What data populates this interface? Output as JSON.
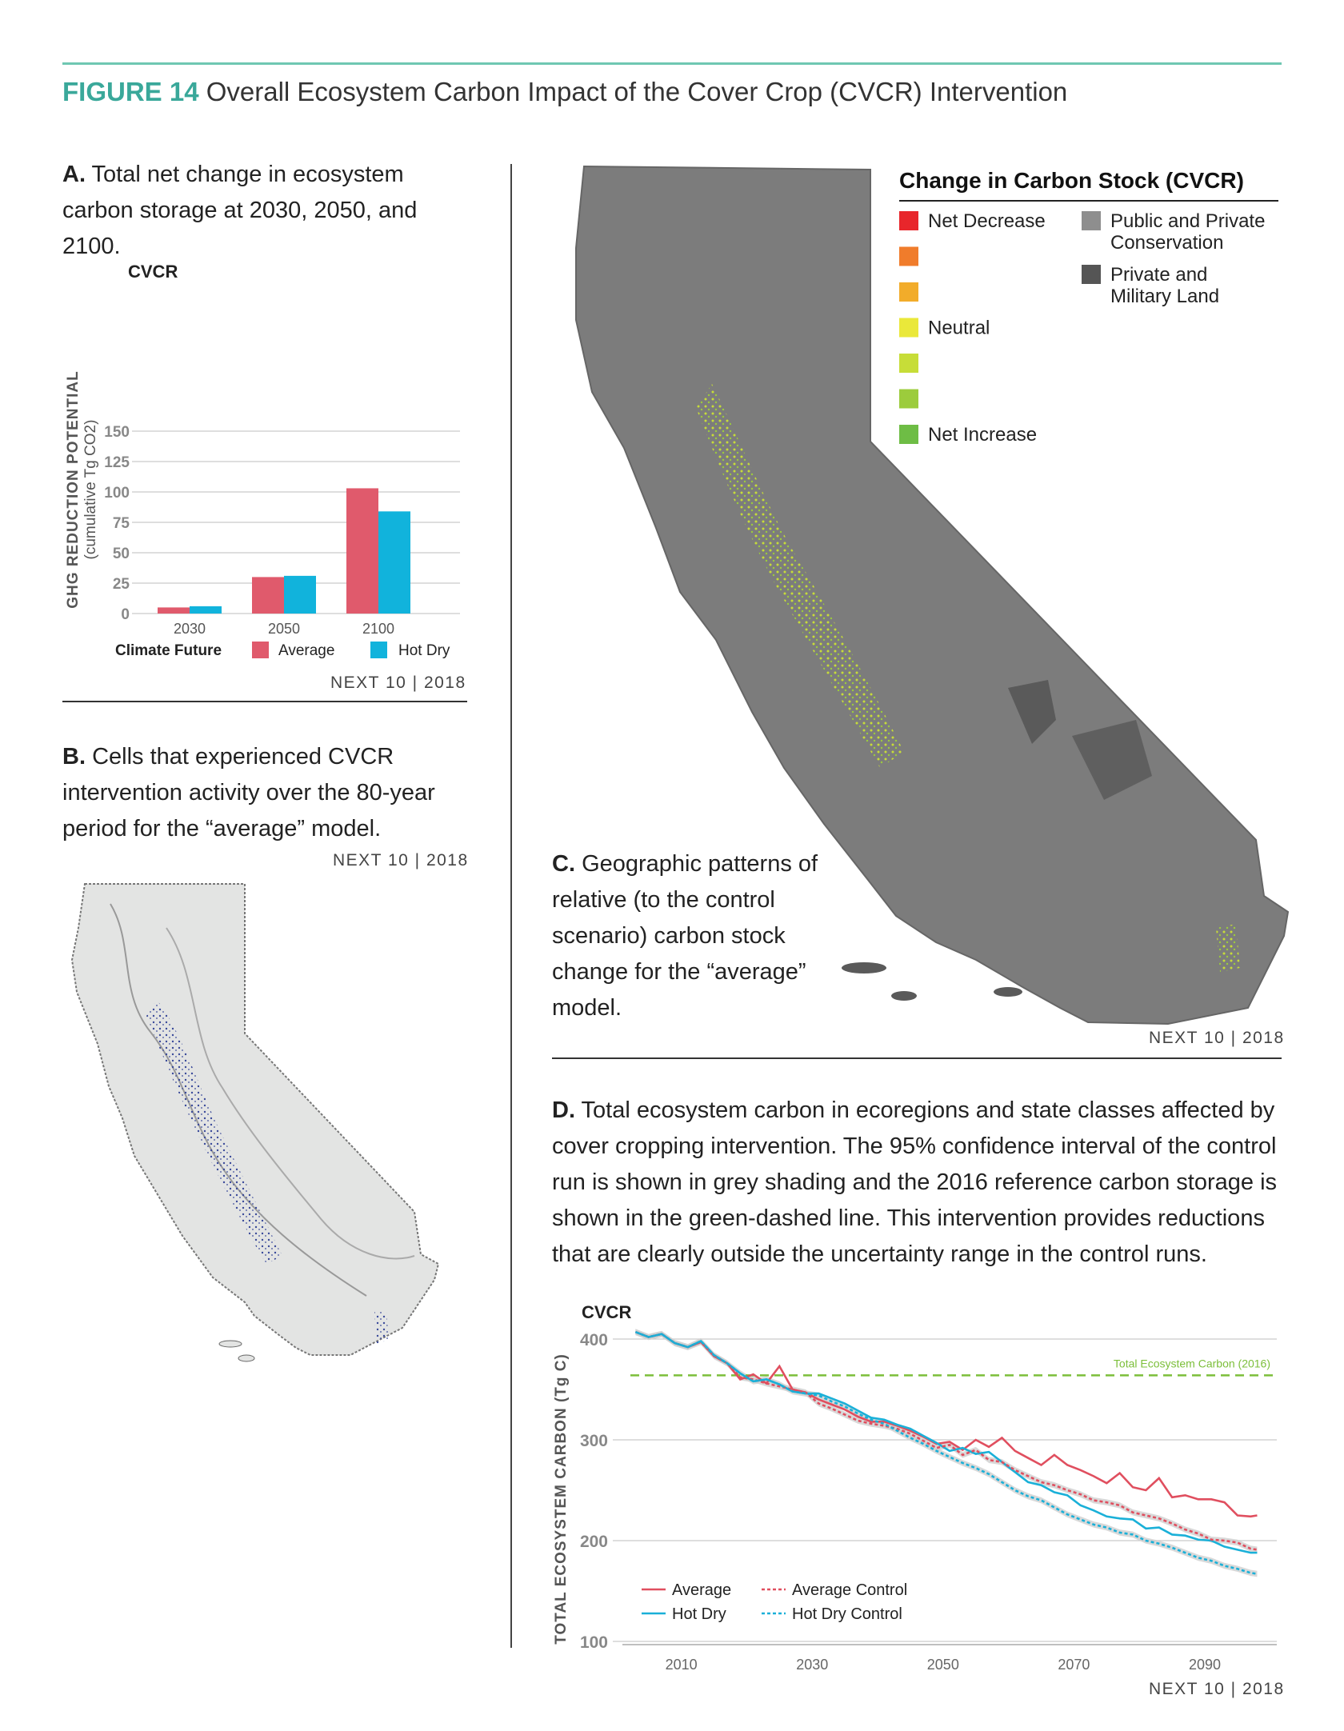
{
  "figure": {
    "number": "FIGURE 14",
    "title": "Overall Ecosystem Carbon Impact of the Cover Crop (CVCR) Intervention"
  },
  "panel_a": {
    "label": "A.",
    "caption": "Total net change in ecosystem carbon storage at 2030, 2050, and 2100.",
    "credit": "NEXT 10 | 2018"
  },
  "panel_b": {
    "label": "B.",
    "caption": "Cells that experienced CVCR intervention activity over the 80-year period for the “average” model.",
    "credit": "NEXT 10 | 2018"
  },
  "panel_c": {
    "label": "C.",
    "caption": "Geographic patterns of relative (to the control scenario) carbon stock change for the “average” model.",
    "credit": "NEXT 10 | 2018",
    "legend": {
      "title": "Change in Carbon Stock (CVCR)",
      "items": [
        {
          "label": "Net Decrease",
          "color": "#e8262b"
        },
        {
          "label": "",
          "color": "#f07c2b"
        },
        {
          "label": "",
          "color": "#f2ac2a"
        },
        {
          "label": "Neutral",
          "color": "#eae83a"
        },
        {
          "label": "",
          "color": "#c7dd38"
        },
        {
          "label": "",
          "color": "#9ccc3c"
        },
        {
          "label": "Net Increase",
          "color": "#6ebd45"
        }
      ],
      "land": [
        {
          "label": "Public and Private Conservation",
          "color": "#8e8e8e"
        },
        {
          "label": "Private and Military Land",
          "color": "#555555"
        }
      ]
    }
  },
  "panel_d": {
    "label": "D.",
    "caption": "Total ecosystem carbon in ecoregions and state classes affected by cover cropping intervention. The 95% confidence interval of the control run is shown in grey shading and the 2016 reference carbon storage is shown in the green-dashed line. This intervention provides reductions that are clearly outside the uncertainty range in the control runs.",
    "credit": "NEXT 10 | 2018"
  },
  "chart_data": [
    {
      "type": "bar",
      "title": "CVCR",
      "ylabel": "GHG REDUCTION POTENTIAL",
      "ylabel_units": "(cumulative Tg CO2)",
      "categories": [
        "2030",
        "2050",
        "2100"
      ],
      "series": [
        {
          "name": "Average",
          "values": [
            5,
            30,
            103
          ],
          "color": "#e05a6c"
        },
        {
          "name": "Hot Dry",
          "values": [
            6,
            31,
            84
          ],
          "color": "#11b3dc"
        }
      ],
      "ylim": [
        0,
        150
      ],
      "yticks": [
        "0",
        "25",
        "50",
        "75",
        "100",
        "125",
        "150"
      ],
      "legend_title": "Climate Future",
      "legend_position": "bottom",
      "grid": true
    },
    {
      "type": "line",
      "title": "CVCR",
      "ylabel": "TOTAL ECOSYSTEM CARBON (Tg C)",
      "xlim": [
        2001,
        2101
      ],
      "ylim": [
        100,
        400
      ],
      "xticks": [
        "2010",
        "2030",
        "2050",
        "2070",
        "2090"
      ],
      "yticks": [
        "100",
        "200",
        "300",
        "400"
      ],
      "reference": {
        "label": "Total Ecosystem Carbon (2016)",
        "value": 364,
        "color": "#7cbf3a"
      },
      "legend_position": "bottom-left",
      "grid": true,
      "x": [
        2003,
        2005,
        2007,
        2009,
        2011,
        2013,
        2015,
        2017,
        2019,
        2021,
        2023,
        2025,
        2027,
        2029,
        2031,
        2033,
        2035,
        2037,
        2039,
        2041,
        2043,
        2045,
        2047,
        2049,
        2051,
        2053,
        2055,
        2057,
        2059,
        2061,
        2063,
        2065,
        2067,
        2069,
        2071,
        2073,
        2075,
        2077,
        2079,
        2081,
        2083,
        2085,
        2087,
        2089,
        2091,
        2093,
        2095,
        2097,
        2098
      ],
      "series": [
        {
          "name": "Average",
          "color": "#e04f5f",
          "style": "solid",
          "values": [
            407,
            402,
            405,
            396,
            392,
            397,
            383,
            376,
            360,
            365,
            356,
            373,
            350,
            347,
            340,
            335,
            330,
            323,
            318,
            318,
            314,
            309,
            303,
            296,
            298,
            290,
            300,
            293,
            302,
            289,
            282,
            275,
            285,
            275,
            270,
            264,
            257,
            267,
            253,
            250,
            262,
            243,
            245,
            241,
            241,
            238,
            225,
            224,
            225
          ]
        },
        {
          "name": "Hot Dry",
          "color": "#1ab0d8",
          "style": "solid",
          "values": [
            407,
            402,
            405,
            396,
            392,
            398,
            384,
            376,
            366,
            358,
            360,
            355,
            348,
            346,
            346,
            341,
            336,
            329,
            322,
            320,
            315,
            311,
            304,
            297,
            289,
            292,
            286,
            288,
            278,
            268,
            258,
            255,
            248,
            245,
            235,
            230,
            224,
            222,
            221,
            212,
            213,
            206,
            205,
            201,
            200,
            194,
            191,
            188,
            188
          ]
        },
        {
          "name": "Average Control",
          "color": "#e04f5f",
          "style": "dashed",
          "values": [
            407,
            402,
            405,
            396,
            392,
            397,
            383,
            376,
            362,
            360,
            356,
            353,
            350,
            347,
            336,
            331,
            325,
            319,
            316,
            314,
            311,
            306,
            299,
            292,
            295,
            285,
            290,
            280,
            278,
            270,
            264,
            258,
            255,
            250,
            246,
            240,
            238,
            235,
            228,
            225,
            222,
            217,
            211,
            207,
            201,
            200,
            198,
            192,
            191
          ]
        },
        {
          "name": "Hot Dry Control",
          "color": "#1ab0d8",
          "style": "dashed",
          "values": [
            407,
            402,
            405,
            396,
            392,
            398,
            384,
            376,
            366,
            358,
            360,
            355,
            348,
            346,
            344,
            338,
            333,
            326,
            320,
            316,
            309,
            302,
            296,
            289,
            283,
            277,
            272,
            266,
            258,
            250,
            244,
            240,
            233,
            226,
            221,
            216,
            213,
            208,
            206,
            200,
            197,
            193,
            188,
            183,
            180,
            175,
            172,
            168,
            167
          ]
        }
      ]
    }
  ]
}
